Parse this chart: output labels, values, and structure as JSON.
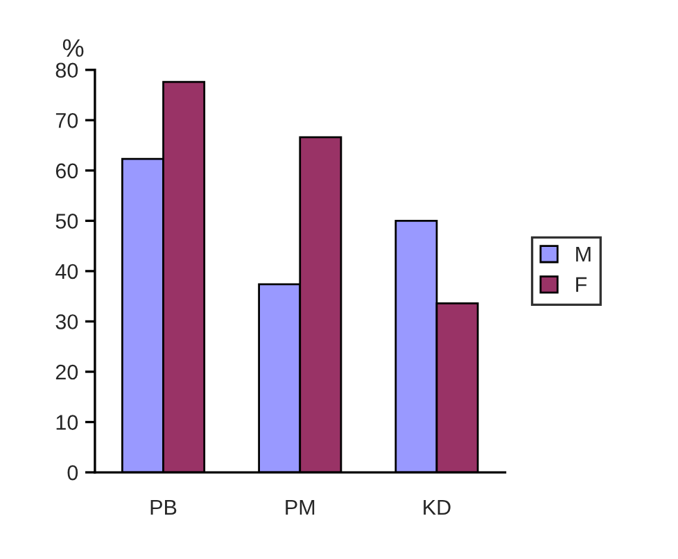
{
  "chart_data": {
    "type": "bar",
    "ylabel": "%",
    "categories": [
      "PB",
      "PM",
      "KD"
    ],
    "series": [
      {
        "name": "M",
        "color": "#9999ff",
        "values": [
          62.3,
          37.4,
          50
        ]
      },
      {
        "name": "F",
        "color": "#993366",
        "values": [
          77.6,
          66.6,
          33.6
        ]
      }
    ],
    "ylim": [
      0,
      80
    ],
    "yticks": [
      0,
      10,
      20,
      30,
      40,
      50,
      60,
      70,
      80
    ],
    "grid": false,
    "legend": "right"
  }
}
